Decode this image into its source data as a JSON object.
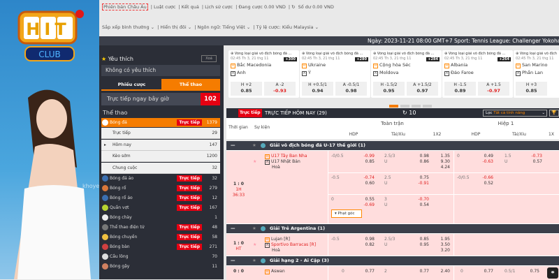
{
  "brand": {
    "logo_text": "HIT",
    "logo_sub": "CLUB",
    "watermark": "khoyec"
  },
  "topbar": {
    "links": [
      "Phiên bản Châu Âu",
      "Luật cược",
      "Kết quả",
      "Lịch sử cược",
      "Đang cược 0.00 VND",
      "Số dư 0.00 VND"
    ],
    "options": [
      "Sắp xếp bình thường ⌄",
      "Hiển thị đôi ⌄",
      "Ngôn ngữ: Tiếng Việt ⌄",
      "Tỷ lệ cược: Kiểu Malaysia ⌄"
    ]
  },
  "header": {
    "ticker": "Ngày:   2023-11-21 08:00 GMT+7 Sport: Tennis League: Challenger Yokohama Event"
  },
  "sidebar": {
    "favorites": "Yêu thích",
    "clear": "Xoá",
    "no_favorites": "Không có yêu thích",
    "tabs": [
      "Phiếu cược",
      "Thể thao"
    ],
    "live_now": "Trực tiếp ngay bây giờ",
    "live_count": "102",
    "sports_title": "Thể thao",
    "live_badge": "Trực tiếp",
    "soccer": {
      "label": "Bóng đá",
      "count": "1379",
      "sub": [
        {
          "label": "Trực tiếp",
          "count": "29"
        },
        {
          "label": "Hôm nay",
          "count": "147"
        },
        {
          "label": "Kèo sớm",
          "count": "1200"
        },
        {
          "label": "Chung cuộc",
          "count": "32"
        }
      ]
    },
    "sports": [
      {
        "label": "Bóng đá ảo",
        "count": "32",
        "live": true,
        "color": "#3b6fb0"
      },
      {
        "label": "Bóng rổ",
        "count": "279",
        "live": true,
        "color": "#d9773a"
      },
      {
        "label": "Bóng rổ ảo",
        "count": "12",
        "live": true,
        "color": "#3b6fb0"
      },
      {
        "label": "Quần vợt",
        "count": "167",
        "live": true,
        "color": "#b8d430"
      },
      {
        "label": "Bóng chày",
        "count": "1",
        "live": false,
        "color": "#eee"
      },
      {
        "label": "Thể thao điện tử",
        "count": "48",
        "live": true,
        "color": "#777"
      },
      {
        "label": "Bóng chuyền",
        "count": "58",
        "live": true,
        "color": "#f0c040"
      },
      {
        "label": "Bóng bàn",
        "count": "271",
        "live": true,
        "color": "#d04040"
      },
      {
        "label": "Cầu lông",
        "count": "70",
        "live": false,
        "color": "#ddd"
      },
      {
        "label": "Bóng gậy",
        "count": "11",
        "live": false,
        "color": "#d08060"
      }
    ]
  },
  "cards": [
    {
      "league": "Vòng loại giải vô địch bóng đá ...",
      "time": "02:45 Th 3, 21 thg 11",
      "count": "+300",
      "home": "Bắc Macedonia",
      "away": "Anh",
      "h": "H +2",
      "hv": "0.85",
      "a": "A -2",
      "av": "-0.93"
    },
    {
      "league": "Vòng loại giải vô địch bóng đá ...",
      "time": "02:45 Th 3, 21 thg 11",
      "count": "+280",
      "home": "Ukraine",
      "away": "Ý",
      "h": "H +0.5/1",
      "hv": "0.94",
      "a": "A -0.5/1",
      "av": "0.98"
    },
    {
      "league": "Vòng loại giải vô địch bóng đá ...",
      "time": "02:45 Th 3, 21 thg 11",
      "count": "+284",
      "home": "Cộng hòa Séc",
      "away": "Moldova",
      "h": "H -1.5/2",
      "hv": "0.95",
      "a": "A +1.5/2",
      "av": "0.97"
    },
    {
      "league": "Vòng loại giải vô địch bóng đá ...",
      "time": "02:45 Th 3, 21 thg 11",
      "count": "+264",
      "home": "Albania",
      "away": "Đảo Faroe",
      "h": "H -1.5",
      "hv": "0.89",
      "a": "A +1.5",
      "av": "-0.97"
    },
    {
      "league": "Vòng loại giải vô địch",
      "time": "02:45 Th 3, 21 thg 11",
      "count": "",
      "home": "San Marino",
      "away": "Phần Lan",
      "h": "H +3",
      "hv": "0.85",
      "a": "",
      "av": ""
    }
  ],
  "live": {
    "badge": "Trực tiếp",
    "title": "TRỰC TIẾP HÔM NAY (29)",
    "refresh": "10",
    "filter_label": "Lọc",
    "filter_value": "Tất cả tính năng"
  },
  "table": {
    "col_time": "Thời gian",
    "col_event": "Sự kiện",
    "full": "Toàn trận",
    "half": "Hiệp 1",
    "sub": [
      "HDP",
      "Tài/Xỉu",
      "1X2",
      "HDP",
      "Tài/Xỉu",
      "1X"
    ],
    "draw": "Hoà",
    "corner": "Phạt góc",
    "leagues": [
      {
        "name": "Giải vô địch bóng đá U-17 thế giới (1)",
        "score": "1 : 0",
        "period": "1H",
        "clock": "36:33",
        "home": "U17 Tây Ban Nha",
        "away": "U17 Nhật Bản",
        "lines": [
          [
            "-0/0.5",
            "-0.99",
            "0.85",
            "2.5/3",
            "U",
            "0.98",
            "0.86",
            "1.35",
            "9.30",
            "4.24",
            "0",
            "0.49",
            "-0.63",
            "1.5",
            "U",
            "-0.73",
            "0.57"
          ],
          [
            "-0.5",
            "-0.74",
            "0.60",
            "2.5",
            "U",
            "0.75",
            "-0.91",
            "",
            "",
            "",
            "-0/0.5",
            "-0.66",
            "0.52",
            "",
            "",
            "",
            ""
          ],
          [
            "0",
            "0.55",
            "-0.69",
            "3",
            "U",
            "-0.70",
            "0.54",
            "",
            "",
            "",
            "",
            "",
            "",
            "",
            "",
            "",
            ""
          ]
        ]
      },
      {
        "name": "Giải Trẻ Argentina (1)",
        "score": "1 : 0",
        "period": "HT",
        "home": "Lujan [R]",
        "away": "Sportivo Barracas [R]",
        "lines": [
          [
            "-0.5",
            "0.98",
            "0.82",
            "2.5/3",
            "U",
            "0.85",
            "0.95",
            "1.95",
            "3.50",
            "3.20"
          ]
        ]
      },
      {
        "name": "Giải hạng 2 - Ai Cập (3)",
        "score": "0 : 0",
        "home": "Aswan",
        "lines": [
          [
            "0",
            "0.77",
            "2",
            "0.77",
            "2.40",
            "0",
            "0.77",
            "0.5/1",
            "0.75"
          ]
        ]
      }
    ]
  }
}
